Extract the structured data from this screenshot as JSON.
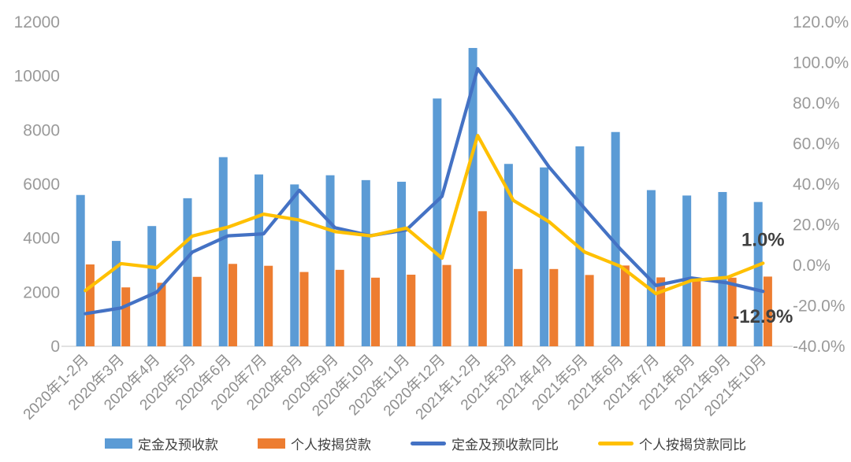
{
  "chart_data": {
    "type": "combo-bar-line",
    "title": "",
    "grid": "off",
    "legend_position": "bottom",
    "categories": [
      "2020年1-2月",
      "2020年3月",
      "2020年4月",
      "2020年5月",
      "2020年6月",
      "2020年7月",
      "2020年8月",
      "2020年9月",
      "2020年10月",
      "2020年11月",
      "2020年12月",
      "2021年1-2月",
      "2021年3月",
      "2021年4月",
      "2021年5月",
      "2021年6月",
      "2021年7月",
      "2021年8月",
      "2021年9月",
      "2021年10月"
    ],
    "series": [
      {
        "name": "定金及预收款",
        "type": "bar",
        "axis": "left",
        "color": "#5B9BD5",
        "values": [
          5600,
          3900,
          4450,
          5480,
          7000,
          6360,
          5990,
          6330,
          6150,
          6090,
          9170,
          11040,
          6750,
          6620,
          7400,
          7930,
          5780,
          5580,
          5710,
          5340
        ]
      },
      {
        "name": "个人按揭贷款",
        "type": "bar",
        "axis": "left",
        "color": "#ED7D31",
        "values": [
          3030,
          2180,
          2350,
          2570,
          3050,
          2980,
          2750,
          2830,
          2540,
          2650,
          3010,
          5000,
          2860,
          2860,
          2640,
          2990,
          2550,
          2500,
          2540,
          2580
        ]
      },
      {
        "name": "定金及预收款同比",
        "type": "line",
        "axis": "right",
        "color": "#4472C4",
        "values": [
          -23.9,
          -21.1,
          -13.3,
          6.5,
          14.5,
          15.5,
          37.0,
          18.5,
          14.6,
          17.4,
          34.0,
          97.0,
          73.5,
          48.5,
          28.0,
          8.0,
          -10.0,
          -6.3,
          -8.7,
          -12.9
        ]
      },
      {
        "name": "个人按揭贷款同比",
        "type": "line",
        "axis": "right",
        "color": "#FFC000",
        "values": [
          -12.5,
          0.8,
          -1.2,
          14.4,
          18.8,
          25.2,
          22.3,
          16.6,
          14.5,
          18.3,
          3.5,
          64.0,
          32.0,
          21.5,
          6.5,
          -0.5,
          -14.0,
          -7.5,
          -6.0,
          1.0
        ]
      }
    ],
    "left_axis": {
      "ticks": [
        0,
        2000,
        4000,
        6000,
        8000,
        10000,
        12000
      ],
      "min": 0,
      "max": 12000
    },
    "right_axis": {
      "ticks": [
        -40,
        -20,
        0,
        20,
        40,
        60,
        80,
        100,
        120
      ],
      "min": -40,
      "max": 120,
      "format": "percent-1dp"
    },
    "annotations": [
      {
        "text": "1.0%",
        "series": "个人按揭贷款同比",
        "placement": "above"
      },
      {
        "text": "-12.9%",
        "series": "定金及预收款同比",
        "placement": "below"
      }
    ],
    "colors": {
      "axis_label": "#9a9a9a",
      "category_label": "#8f8f8f",
      "baseline": "#d9d9d9",
      "annotation": "#404040"
    }
  }
}
